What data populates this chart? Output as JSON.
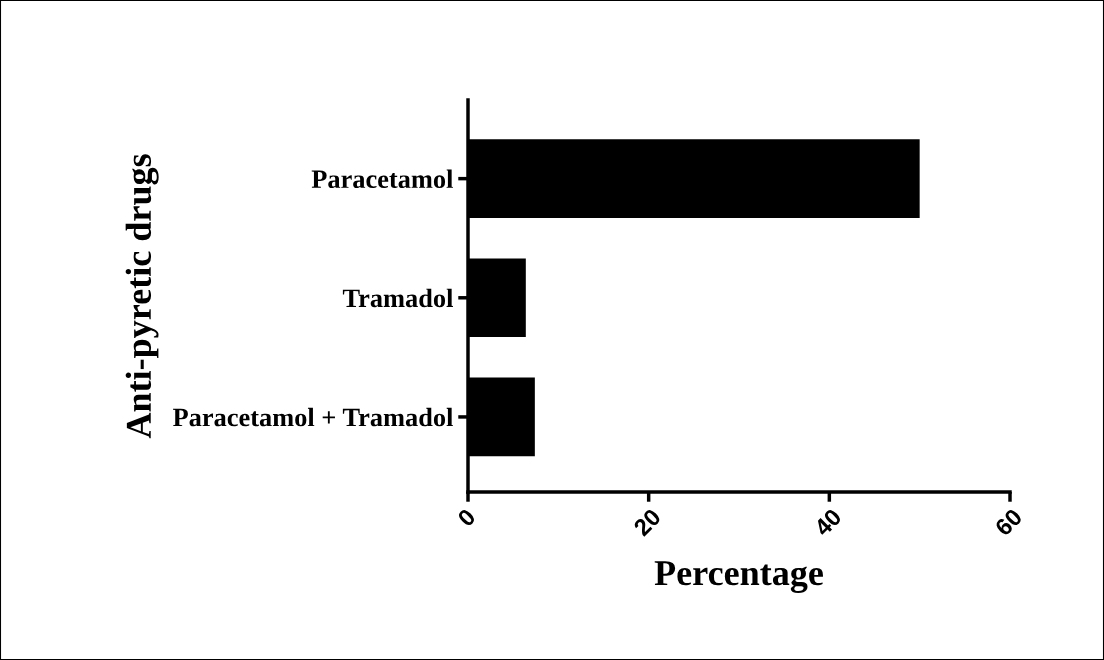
{
  "chart_data": {
    "type": "bar",
    "orientation": "horizontal",
    "categories": [
      "Paracetamol",
      "Tramadol",
      "Paracetamol + Tramadol"
    ],
    "values": [
      50,
      6.4,
      7.4
    ],
    "color": "#000000",
    "xlabel": "Percentage",
    "ylabel": "Anti-pyretic drugs",
    "xlim": [
      0,
      60
    ],
    "xticks": [
      0,
      20,
      40,
      60
    ],
    "grid": false,
    "legend": false
  }
}
